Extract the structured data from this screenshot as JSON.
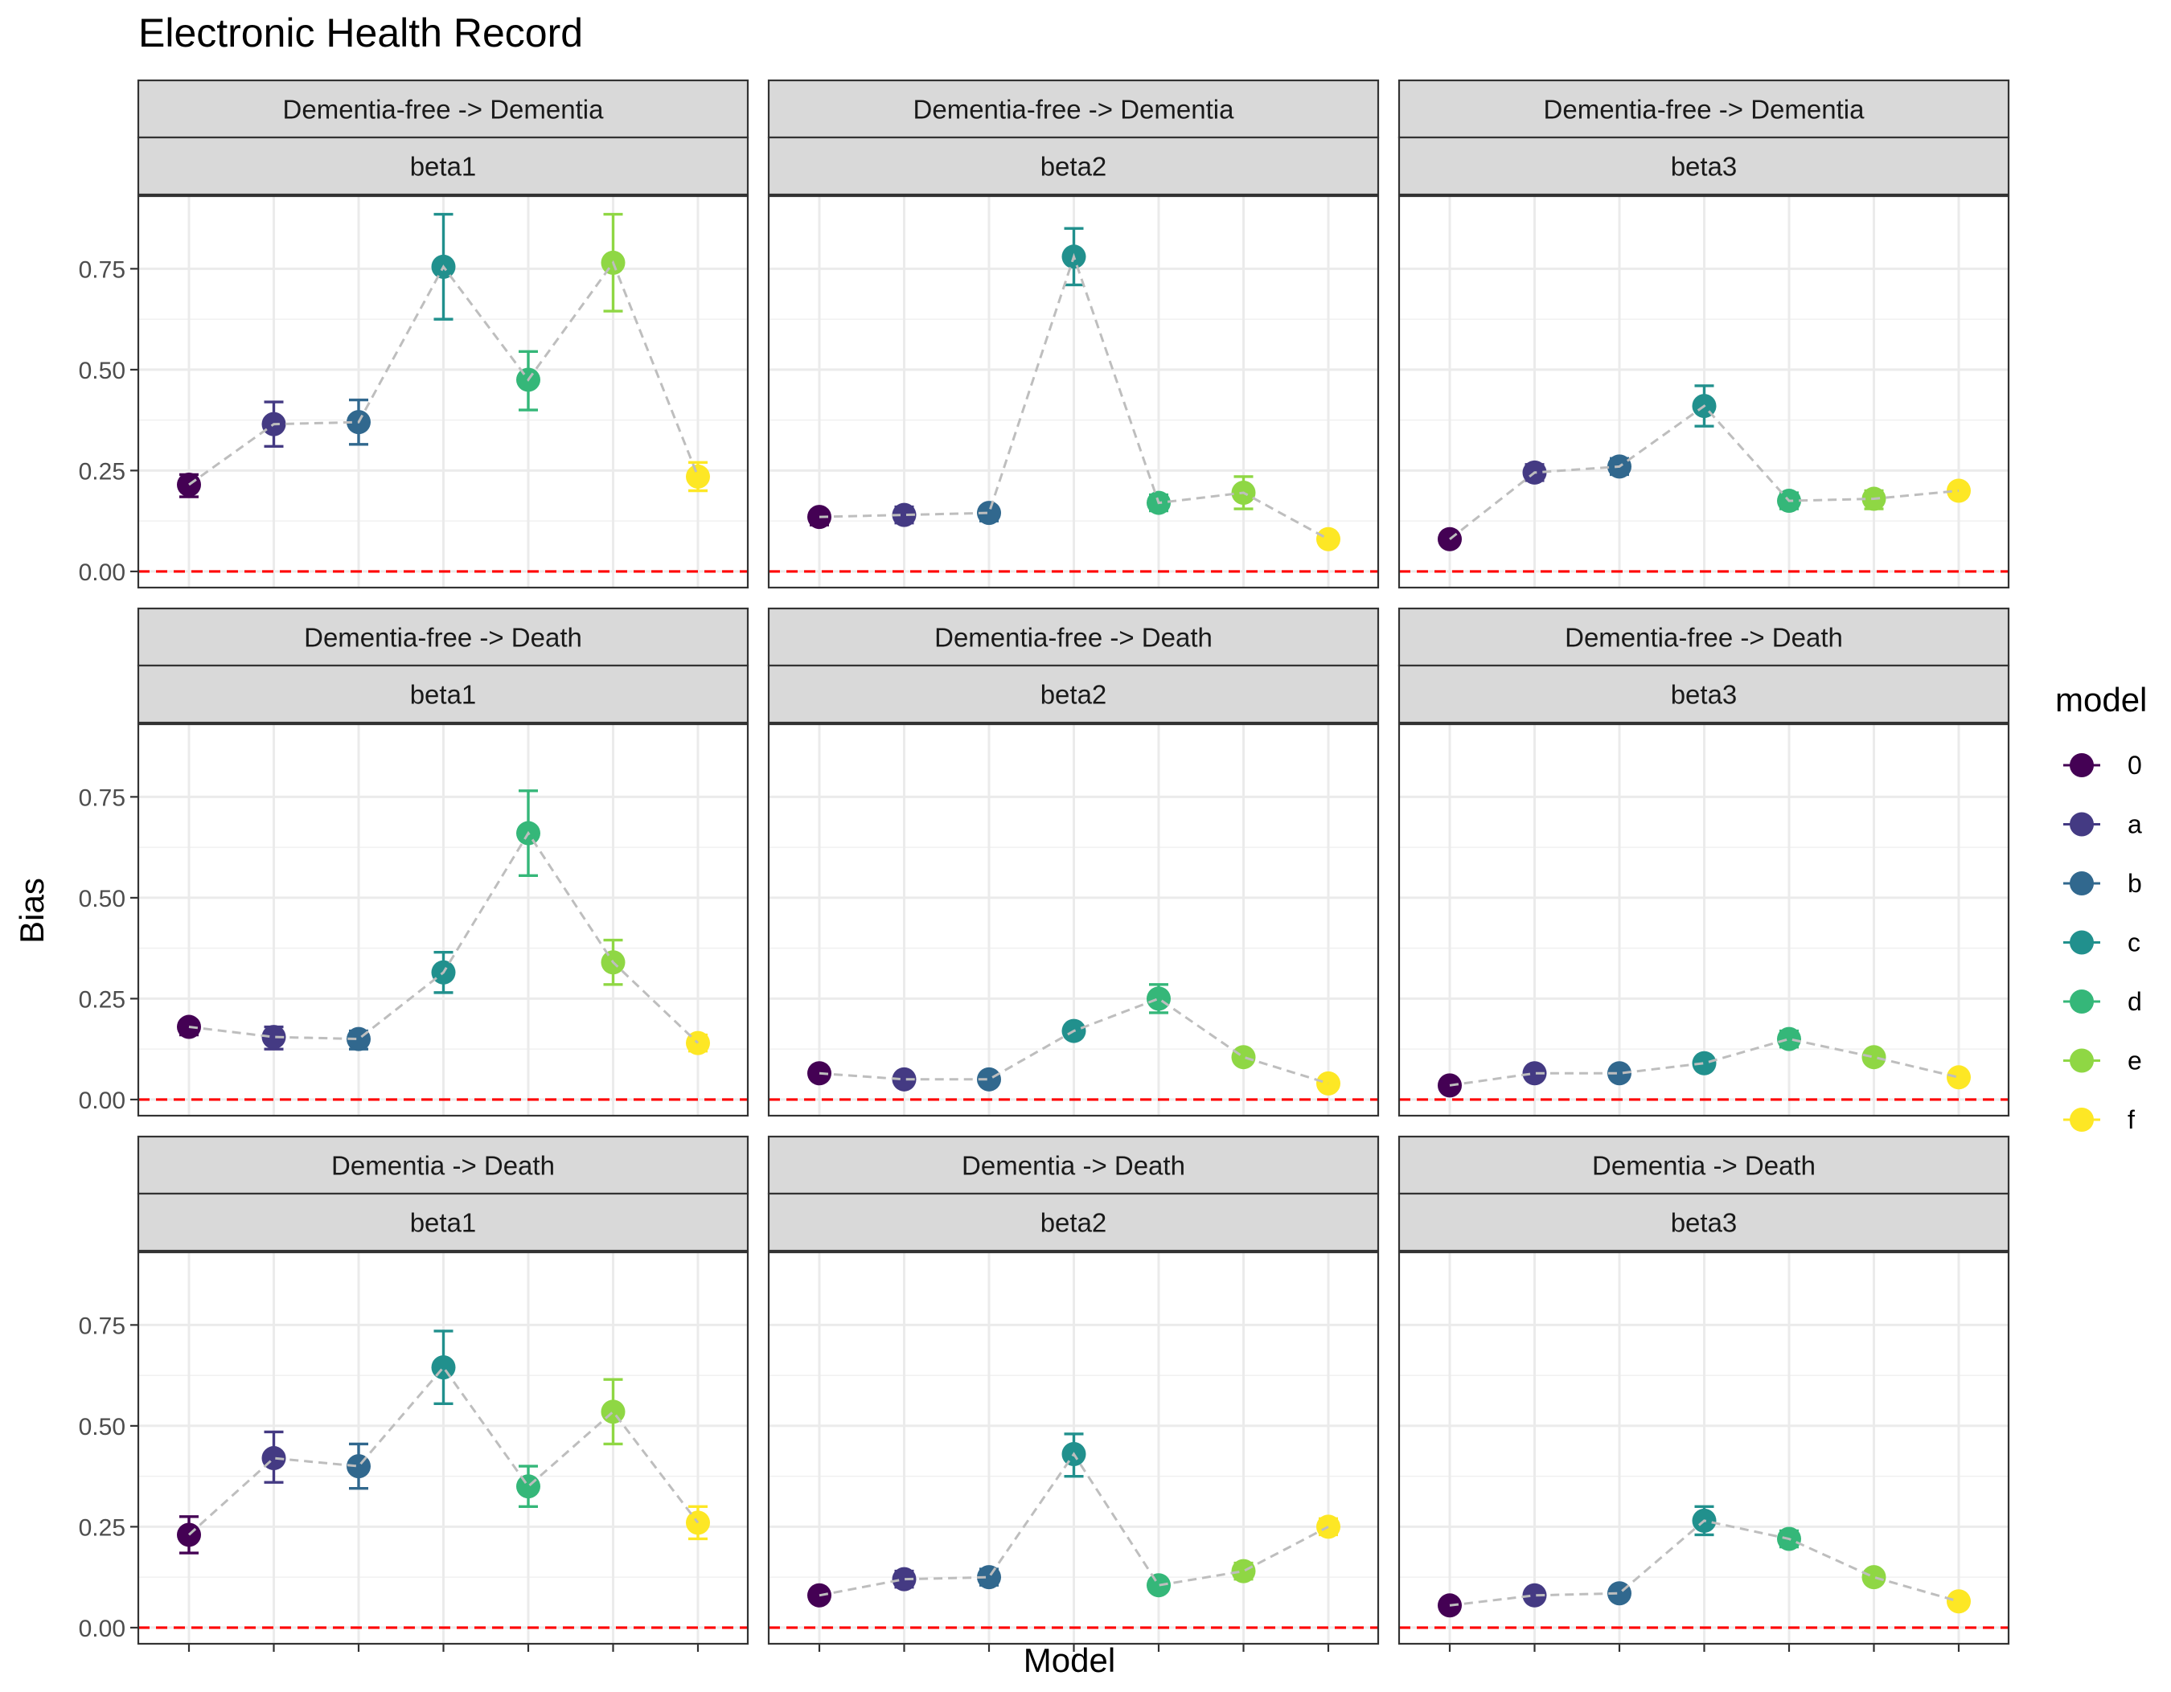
{
  "chart_data": {
    "type": "scatter",
    "title": "Electronic Health Record",
    "xlabel": "Model",
    "ylabel": "Bias",
    "ylim": [
      -0.04,
      0.93
    ],
    "y_ticks": [
      0.0,
      0.25,
      0.5,
      0.75
    ],
    "y_tick_labels": [
      "0.00",
      "0.25",
      "0.50",
      "0.75"
    ],
    "reference_line": {
      "y": 0,
      "color": "#ff0000",
      "style": "dashed"
    },
    "connector": {
      "color": "#bebebe",
      "style": "dashed"
    },
    "categories": [
      "0",
      "a",
      "b",
      "c",
      "d",
      "e",
      "f"
    ],
    "legend": {
      "title": "model",
      "position": "right",
      "entries": [
        "0",
        "a",
        "b",
        "c",
        "d",
        "e",
        "f"
      ],
      "colors": [
        "#440154",
        "#443a83",
        "#31688e",
        "#21908d",
        "#35b779",
        "#8fd744",
        "#fde725"
      ]
    },
    "grid": true,
    "facets": [
      {
        "transition": "Dementia-free -> Dementia",
        "parameter": "beta1",
        "values": [
          0.215,
          0.365,
          0.37,
          0.755,
          0.475,
          0.765,
          0.235
        ],
        "lower": [
          0.185,
          0.31,
          0.315,
          0.625,
          0.4,
          0.645,
          0.2
        ],
        "upper": [
          0.24,
          0.42,
          0.425,
          0.885,
          0.545,
          0.885,
          0.27
        ]
      },
      {
        "transition": "Dementia-free -> Dementia",
        "parameter": "beta2",
        "values": [
          0.135,
          0.14,
          0.145,
          0.78,
          0.17,
          0.195,
          0.08
        ],
        "lower": [
          0.115,
          0.12,
          0.125,
          0.71,
          0.15,
          0.155,
          0.07
        ],
        "upper": [
          0.15,
          0.16,
          0.16,
          0.85,
          0.19,
          0.235,
          0.09
        ]
      },
      {
        "transition": "Dementia-free -> Dementia",
        "parameter": "beta3",
        "values": [
          0.08,
          0.245,
          0.26,
          0.41,
          0.175,
          0.18,
          0.2
        ],
        "lower": [
          0.07,
          0.225,
          0.24,
          0.36,
          0.155,
          0.155,
          0.185
        ],
        "upper": [
          0.09,
          0.265,
          0.28,
          0.46,
          0.195,
          0.2,
          0.215
        ]
      },
      {
        "transition": "Dementia-free -> Death",
        "parameter": "beta1",
        "values": [
          0.18,
          0.155,
          0.15,
          0.315,
          0.66,
          0.34,
          0.14
        ],
        "lower": [
          0.16,
          0.125,
          0.125,
          0.265,
          0.555,
          0.285,
          0.12
        ],
        "upper": [
          0.195,
          0.18,
          0.17,
          0.365,
          0.765,
          0.395,
          0.16
        ]
      },
      {
        "transition": "Dementia-free -> Death",
        "parameter": "beta2",
        "values": [
          0.065,
          0.05,
          0.05,
          0.17,
          0.25,
          0.105,
          0.04
        ],
        "lower": [
          0.055,
          0.04,
          0.04,
          0.155,
          0.215,
          0.095,
          0.03
        ],
        "upper": [
          0.075,
          0.06,
          0.06,
          0.185,
          0.285,
          0.115,
          0.05
        ]
      },
      {
        "transition": "Dementia-free -> Death",
        "parameter": "beta3",
        "values": [
          0.035,
          0.065,
          0.065,
          0.09,
          0.15,
          0.105,
          0.055
        ],
        "lower": [
          0.025,
          0.055,
          0.055,
          0.08,
          0.13,
          0.095,
          0.045
        ],
        "upper": [
          0.045,
          0.075,
          0.075,
          0.1,
          0.17,
          0.115,
          0.065
        ]
      },
      {
        "transition": "Dementia -> Death",
        "parameter": "beta1",
        "values": [
          0.23,
          0.42,
          0.4,
          0.645,
          0.35,
          0.535,
          0.26
        ],
        "lower": [
          0.185,
          0.36,
          0.345,
          0.555,
          0.3,
          0.455,
          0.22
        ],
        "upper": [
          0.275,
          0.485,
          0.455,
          0.735,
          0.4,
          0.615,
          0.3
        ]
      },
      {
        "transition": "Dementia -> Death",
        "parameter": "beta2",
        "values": [
          0.08,
          0.12,
          0.125,
          0.43,
          0.105,
          0.14,
          0.25
        ],
        "lower": [
          0.07,
          0.1,
          0.105,
          0.375,
          0.09,
          0.12,
          0.23
        ],
        "upper": [
          0.09,
          0.14,
          0.145,
          0.48,
          0.12,
          0.16,
          0.27
        ]
      },
      {
        "transition": "Dementia -> Death",
        "parameter": "beta3",
        "values": [
          0.055,
          0.08,
          0.085,
          0.265,
          0.22,
          0.125,
          0.065
        ],
        "lower": [
          0.045,
          0.07,
          0.075,
          0.23,
          0.2,
          0.11,
          0.055
        ],
        "upper": [
          0.065,
          0.09,
          0.095,
          0.3,
          0.24,
          0.14,
          0.075
        ]
      }
    ]
  }
}
